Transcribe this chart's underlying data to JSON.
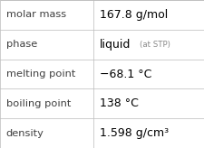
{
  "rows": [
    {
      "label": "molar mass",
      "value": "167.8 g/mol",
      "value_extra": null
    },
    {
      "label": "phase",
      "value": "liquid",
      "value_extra": "(at STP)"
    },
    {
      "label": "melting point",
      "value": "−68.1 °C",
      "value_extra": null
    },
    {
      "label": "boiling point",
      "value": "138 °C",
      "value_extra": null
    },
    {
      "label": "density",
      "value": "1.598 g/cm³",
      "value_extra": null
    }
  ],
  "bg_color": "#ffffff",
  "line_color": "#bbbbbb",
  "label_color": "#404040",
  "value_color": "#000000",
  "extra_color": "#888888",
  "label_fontsize": 8.2,
  "value_fontsize": 9.0,
  "extra_fontsize": 6.2,
  "col_split": 0.455,
  "fig_width": 2.26,
  "fig_height": 1.64,
  "dpi": 100
}
